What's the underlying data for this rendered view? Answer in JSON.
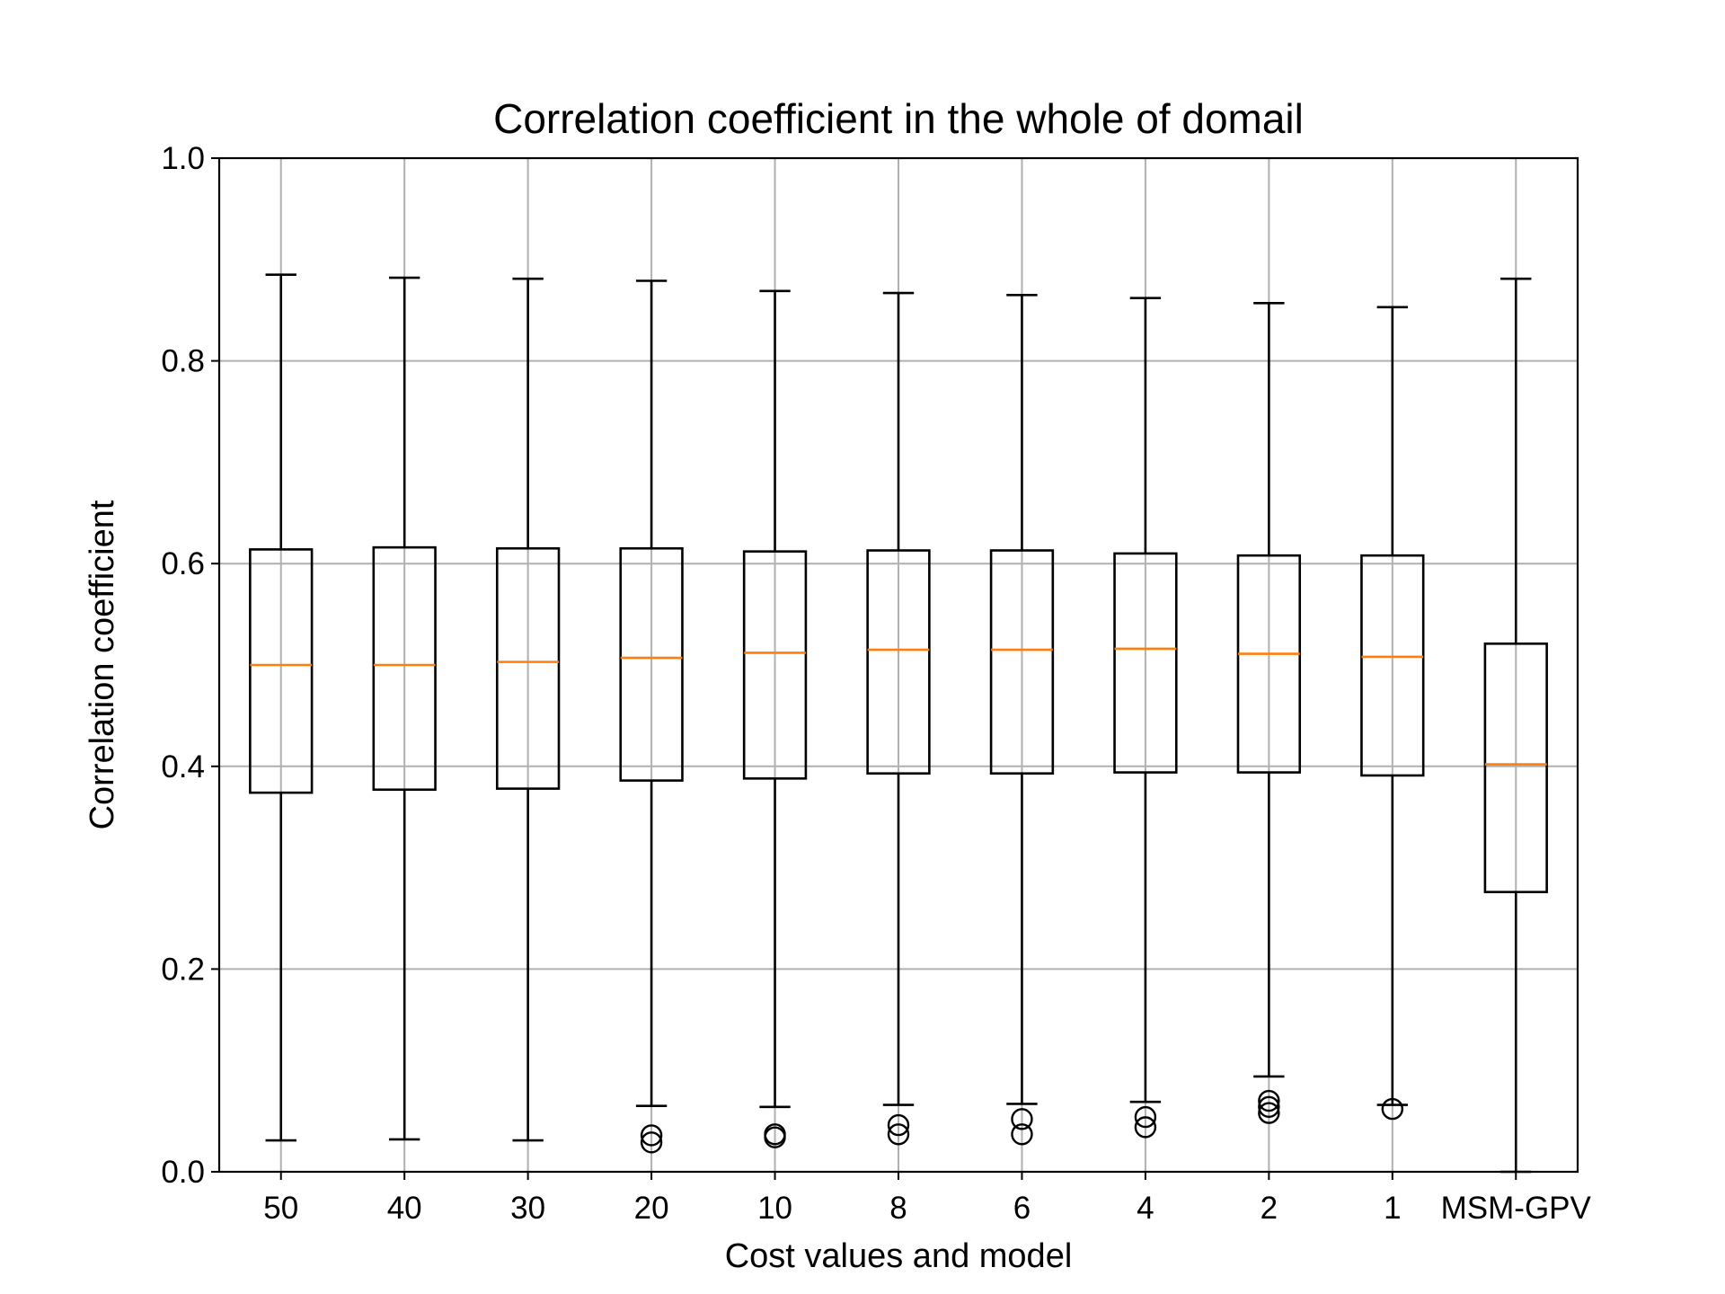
{
  "chart_data": {
    "type": "box",
    "title": "Correlation coefficient in the whole of domail",
    "xlabel": "Cost values and model",
    "ylabel": "Correlation coefficient",
    "ylim": [
      0.0,
      1.0
    ],
    "yticks": [
      "0.0",
      "0.2",
      "0.4",
      "0.6",
      "0.8",
      "1.0"
    ],
    "grid": true,
    "colors": {
      "box": "#000000",
      "median": "#ff7f0e",
      "grid": "#b0b0b0"
    },
    "categories": [
      "50",
      "40",
      "30",
      "20",
      "10",
      "8",
      "6",
      "4",
      "2",
      "1",
      "MSM-GPV"
    ],
    "boxes": [
      {
        "label": "50",
        "whislo": 0.031,
        "q1": 0.374,
        "med": 0.5,
        "q3": 0.614,
        "whishi": 0.885,
        "fliers": []
      },
      {
        "label": "40",
        "whislo": 0.032,
        "q1": 0.377,
        "med": 0.5,
        "q3": 0.616,
        "whishi": 0.882,
        "fliers": []
      },
      {
        "label": "30",
        "whislo": 0.031,
        "q1": 0.378,
        "med": 0.503,
        "q3": 0.615,
        "whishi": 0.881,
        "fliers": []
      },
      {
        "label": "20",
        "whislo": 0.065,
        "q1": 0.386,
        "med": 0.507,
        "q3": 0.615,
        "whishi": 0.879,
        "fliers": [
          0.036,
          0.029
        ]
      },
      {
        "label": "10",
        "whislo": 0.064,
        "q1": 0.388,
        "med": 0.512,
        "q3": 0.612,
        "whishi": 0.869,
        "fliers": [
          0.037,
          0.034
        ]
      },
      {
        "label": "8",
        "whislo": 0.066,
        "q1": 0.393,
        "med": 0.515,
        "q3": 0.613,
        "whishi": 0.867,
        "fliers": [
          0.046,
          0.037
        ]
      },
      {
        "label": "6",
        "whislo": 0.067,
        "q1": 0.393,
        "med": 0.515,
        "q3": 0.613,
        "whishi": 0.865,
        "fliers": [
          0.052,
          0.037
        ]
      },
      {
        "label": "4",
        "whislo": 0.069,
        "q1": 0.394,
        "med": 0.516,
        "q3": 0.61,
        "whishi": 0.862,
        "fliers": [
          0.054,
          0.044
        ]
      },
      {
        "label": "2",
        "whislo": 0.094,
        "q1": 0.394,
        "med": 0.511,
        "q3": 0.608,
        "whishi": 0.857,
        "fliers": [
          0.07,
          0.064,
          0.058
        ]
      },
      {
        "label": "1",
        "whislo": 0.066,
        "q1": 0.391,
        "med": 0.508,
        "q3": 0.608,
        "whishi": 0.853,
        "fliers": [
          0.062
        ]
      },
      {
        "label": "MSM-GPV",
        "whislo": 0.0,
        "q1": 0.276,
        "med": 0.402,
        "q3": 0.521,
        "whishi": 0.881,
        "fliers": []
      }
    ]
  }
}
